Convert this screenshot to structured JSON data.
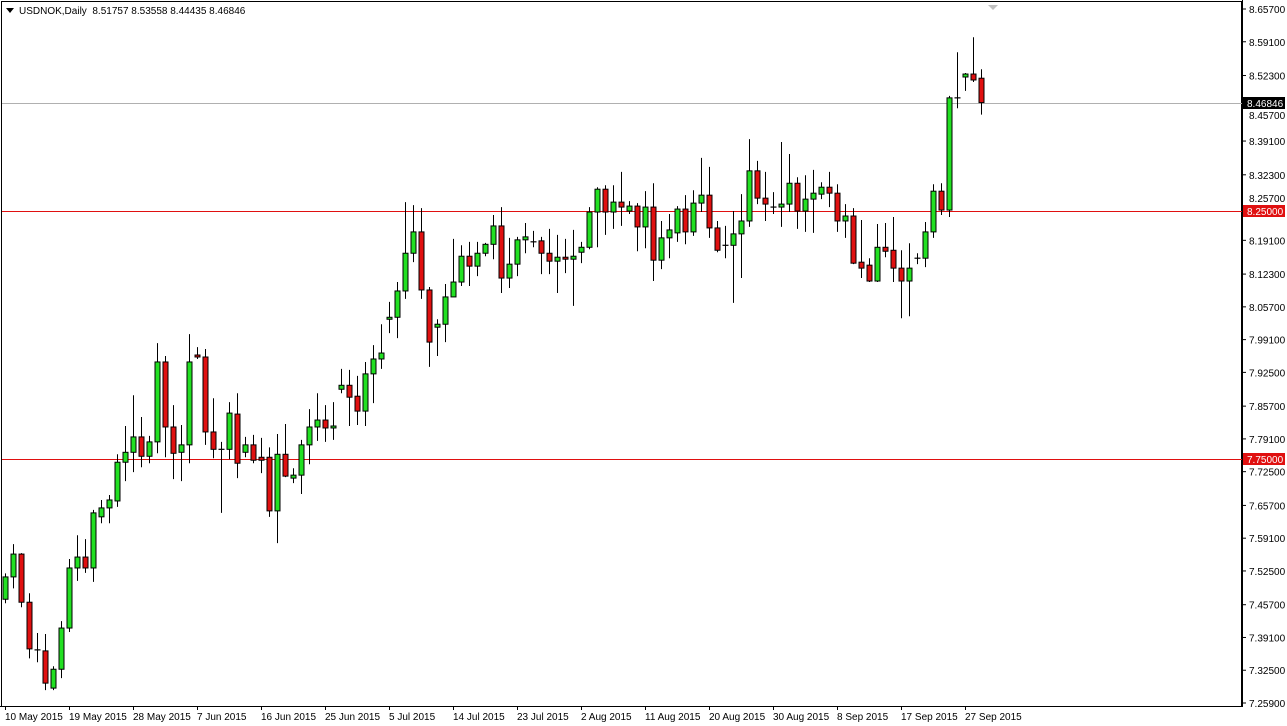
{
  "header": {
    "symbol_timeframe": "USDNOK,Daily",
    "open": "8.51757",
    "high": "8.53558",
    "low": "8.44435",
    "close": "8.46846"
  },
  "colors": {
    "bull": "#22e022",
    "bear": "#e01010",
    "wick": "#000000",
    "level_line": "#e01010",
    "price_line": "#b0b0b0",
    "price_label_bg": "#000000"
  },
  "chart_data": {
    "type": "candlestick",
    "title": "USDNOK,Daily",
    "ylim": [
      7.259,
      8.657
    ],
    "grid": false,
    "y_ticks": [
      "8.65700",
      "8.59100",
      "8.52300",
      "8.45700",
      "8.39100",
      "8.32300",
      "8.25700",
      "8.19100",
      "8.12300",
      "8.05700",
      "7.99100",
      "7.92500",
      "7.85700",
      "7.79100",
      "7.72500",
      "7.65700",
      "7.59100",
      "7.52500",
      "7.45700",
      "7.39100",
      "7.32500",
      "7.25900"
    ],
    "x_ticks": [
      {
        "index": 0,
        "label": "10 May 2015"
      },
      {
        "index": 8,
        "label": "19 May 2015"
      },
      {
        "index": 16,
        "label": "28 May 2015"
      },
      {
        "index": 24,
        "label": "7 Jun 2015"
      },
      {
        "index": 32,
        "label": "16 Jun 2015"
      },
      {
        "index": 40,
        "label": "25 Jun 2015"
      },
      {
        "index": 48,
        "label": "5 Jul 2015"
      },
      {
        "index": 56,
        "label": "14 Jul 2015"
      },
      {
        "index": 64,
        "label": "23 Jul 2015"
      },
      {
        "index": 72,
        "label": "2 Aug 2015"
      },
      {
        "index": 80,
        "label": "11 Aug 2015"
      },
      {
        "index": 88,
        "label": "20 Aug 2015"
      },
      {
        "index": 96,
        "label": "30 Aug 2015"
      },
      {
        "index": 104,
        "label": "8 Sep 2015"
      },
      {
        "index": 112,
        "label": "17 Sep 2015"
      },
      {
        "index": 120,
        "label": "27 Sep 2015"
      }
    ],
    "horizontal_levels": [
      {
        "price": 8.25,
        "label": "8.25000"
      },
      {
        "price": 7.75,
        "label": "7.75000"
      }
    ],
    "current_price": {
      "price": 8.46846,
      "label": "8.46846"
    },
    "candles_ohlc": [
      [
        7.468,
        7.52,
        7.46,
        7.513
      ],
      [
        7.513,
        7.579,
        7.49,
        7.559
      ],
      [
        7.559,
        7.561,
        7.452,
        7.462
      ],
      [
        7.462,
        7.48,
        7.349,
        7.368
      ],
      [
        7.366,
        7.4,
        7.341,
        7.366
      ],
      [
        7.364,
        7.398,
        7.285,
        7.299
      ],
      [
        7.289,
        7.333,
        7.285,
        7.327
      ],
      [
        7.327,
        7.424,
        7.309,
        7.41
      ],
      [
        7.41,
        7.549,
        7.402,
        7.531
      ],
      [
        7.531,
        7.597,
        7.505,
        7.553
      ],
      [
        7.553,
        7.589,
        7.521,
        7.531
      ],
      [
        7.531,
        7.648,
        7.503,
        7.642
      ],
      [
        7.634,
        7.668,
        7.621,
        7.652
      ],
      [
        7.652,
        7.678,
        7.621,
        7.668
      ],
      [
        7.666,
        7.76,
        7.654,
        7.744
      ],
      [
        7.744,
        7.817,
        7.706,
        7.764
      ],
      [
        7.764,
        7.879,
        7.724,
        7.795
      ],
      [
        7.795,
        7.835,
        7.734,
        7.756
      ],
      [
        7.756,
        7.797,
        7.742,
        7.785
      ],
      [
        7.785,
        7.984,
        7.762,
        7.946
      ],
      [
        7.946,
        7.958,
        7.754,
        7.815
      ],
      [
        7.815,
        7.859,
        7.71,
        7.762
      ],
      [
        7.764,
        7.819,
        7.706,
        7.779
      ],
      [
        7.779,
        8.002,
        7.742,
        7.946
      ],
      [
        7.96,
        7.976,
        7.952,
        7.956
      ],
      [
        7.956,
        7.972,
        7.779,
        7.805
      ],
      [
        7.805,
        7.873,
        7.752,
        7.77
      ],
      [
        7.77,
        7.785,
        7.642,
        7.77
      ],
      [
        7.77,
        7.865,
        7.75,
        7.843
      ],
      [
        7.841,
        7.883,
        7.712,
        7.742
      ],
      [
        7.764,
        7.795,
        7.754,
        7.779
      ],
      [
        7.779,
        7.799,
        7.742,
        7.748
      ],
      [
        7.754,
        7.793,
        7.722,
        7.748
      ],
      [
        7.754,
        7.774,
        7.634,
        7.646
      ],
      [
        7.646,
        7.801,
        7.581,
        7.76
      ],
      [
        7.76,
        7.821,
        7.714,
        7.716
      ],
      [
        7.712,
        7.732,
        7.702,
        7.718
      ],
      [
        7.718,
        7.789,
        7.68,
        7.779
      ],
      [
        7.779,
        7.851,
        7.74,
        7.815
      ],
      [
        7.815,
        7.883,
        7.787,
        7.829
      ],
      [
        7.829,
        7.859,
        7.785,
        7.813
      ],
      [
        7.813,
        7.865,
        7.789,
        7.817
      ],
      [
        7.891,
        7.932,
        7.883,
        7.899
      ],
      [
        7.899,
        7.93,
        7.817,
        7.875
      ],
      [
        7.877,
        7.918,
        7.819,
        7.847
      ],
      [
        7.847,
        7.946,
        7.817,
        7.922
      ],
      [
        7.922,
        7.98,
        7.863,
        7.952
      ],
      [
        7.952,
        8.022,
        7.932,
        7.964
      ],
      [
        8.032,
        8.067,
        8.004,
        8.036
      ],
      [
        8.036,
        8.107,
        7.994,
        8.089
      ],
      [
        8.089,
        8.268,
        8.073,
        8.165
      ],
      [
        8.165,
        8.262,
        8.147,
        8.208
      ],
      [
        8.208,
        8.256,
        8.073,
        8.091
      ],
      [
        8.091,
        8.097,
        7.936,
        7.986
      ],
      [
        8.016,
        8.032,
        7.958,
        8.022
      ],
      [
        8.022,
        8.103,
        7.986,
        8.077
      ],
      [
        8.077,
        8.194,
        8.077,
        8.107
      ],
      [
        8.107,
        8.181,
        8.099,
        8.159
      ],
      [
        8.159,
        8.188,
        8.099,
        8.139
      ],
      [
        8.139,
        8.188,
        8.119,
        8.165
      ],
      [
        8.165,
        8.186,
        8.159,
        8.183
      ],
      [
        8.183,
        8.242,
        8.153,
        8.22
      ],
      [
        8.22,
        8.258,
        8.085,
        8.115
      ],
      [
        8.115,
        8.196,
        8.095,
        8.143
      ],
      [
        8.143,
        8.198,
        8.119,
        8.192
      ],
      [
        8.192,
        8.226,
        8.165,
        8.198
      ],
      [
        8.188,
        8.21,
        8.177,
        8.188
      ],
      [
        8.19,
        8.198,
        8.123,
        8.165
      ],
      [
        8.165,
        8.214,
        8.123,
        8.149
      ],
      [
        8.149,
        8.202,
        8.085,
        8.157
      ],
      [
        8.157,
        8.194,
        8.125,
        8.153
      ],
      [
        8.153,
        8.212,
        8.059,
        8.159
      ],
      [
        8.167,
        8.188,
        8.145,
        8.177
      ],
      [
        8.177,
        8.258,
        8.173,
        8.248
      ],
      [
        8.248,
        8.298,
        8.177,
        8.294
      ],
      [
        8.294,
        8.302,
        8.202,
        8.248
      ],
      [
        8.248,
        8.302,
        8.214,
        8.268
      ],
      [
        8.268,
        8.329,
        8.22,
        8.258
      ],
      [
        8.25,
        8.27,
        8.244,
        8.26
      ],
      [
        8.26,
        8.266,
        8.169,
        8.218
      ],
      [
        8.218,
        8.29,
        8.175,
        8.258
      ],
      [
        8.258,
        8.306,
        8.109,
        8.151
      ],
      [
        8.151,
        8.23,
        8.133,
        8.196
      ],
      [
        8.196,
        8.244,
        8.155,
        8.212
      ],
      [
        8.206,
        8.26,
        8.188,
        8.254
      ],
      [
        8.254,
        8.282,
        8.183,
        8.208
      ],
      [
        8.208,
        8.292,
        8.2,
        8.266
      ],
      [
        8.266,
        8.357,
        8.248,
        8.282
      ],
      [
        8.282,
        8.339,
        8.196,
        8.216
      ],
      [
        8.216,
        8.23,
        8.167,
        8.171
      ],
      [
        8.181,
        8.22,
        8.155,
        8.181
      ],
      [
        8.181,
        8.25,
        8.065,
        8.204
      ],
      [
        8.204,
        8.284,
        8.115,
        8.23
      ],
      [
        8.23,
        8.395,
        8.218,
        8.331
      ],
      [
        8.331,
        8.351,
        8.264,
        8.276
      ],
      [
        8.276,
        8.329,
        8.23,
        8.264
      ],
      [
        8.258,
        8.288,
        8.244,
        8.258
      ],
      [
        8.258,
        8.389,
        8.218,
        8.264
      ],
      [
        8.264,
        8.365,
        8.248,
        8.306
      ],
      [
        8.306,
        8.318,
        8.214,
        8.25
      ],
      [
        8.25,
        8.322,
        8.208,
        8.274
      ],
      [
        8.274,
        8.333,
        8.206,
        8.286
      ],
      [
        8.284,
        8.308,
        8.274,
        8.298
      ],
      [
        8.298,
        8.329,
        8.258,
        8.286
      ],
      [
        8.286,
        8.304,
        8.208,
        8.23
      ],
      [
        8.23,
        8.264,
        8.196,
        8.24
      ],
      [
        8.24,
        8.256,
        8.143,
        8.145
      ],
      [
        8.147,
        8.232,
        8.115,
        8.135
      ],
      [
        8.141,
        8.155,
        8.107,
        8.109
      ],
      [
        8.109,
        8.224,
        8.107,
        8.177
      ],
      [
        8.177,
        8.226,
        8.157,
        8.169
      ],
      [
        8.171,
        8.238,
        8.107,
        8.135
      ],
      [
        8.135,
        8.171,
        8.034,
        8.109
      ],
      [
        8.109,
        8.185,
        8.038,
        8.135
      ],
      [
        8.155,
        8.165,
        8.143,
        8.155
      ],
      [
        8.155,
        8.228,
        8.137,
        8.208
      ],
      [
        8.208,
        8.304,
        8.196,
        8.29
      ],
      [
        8.29,
        8.306,
        8.242,
        8.252
      ],
      [
        8.252,
        8.482,
        8.238,
        8.478
      ],
      [
        8.478,
        8.57,
        8.457,
        8.478
      ],
      [
        8.52,
        8.528,
        8.492,
        8.526
      ],
      [
        8.526,
        8.6,
        8.51,
        8.514
      ],
      [
        8.51757,
        8.53558,
        8.44435,
        8.46846
      ]
    ]
  }
}
